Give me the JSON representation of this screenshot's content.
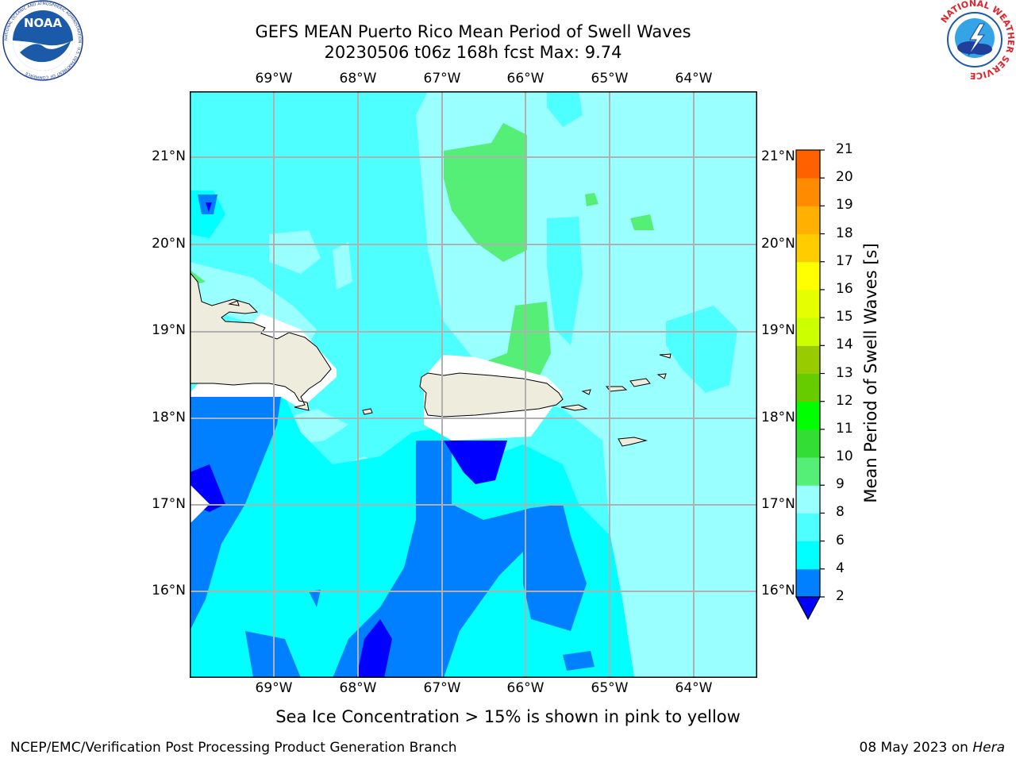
{
  "title": {
    "line1": "GEFS MEAN Puerto Rico Mean Period of Swell Waves",
    "line2": "20230506 t06z 168h fcst   Max: 9.74"
  },
  "map": {
    "lon_labels": [
      "69°W",
      "68°W",
      "67°W",
      "66°W",
      "65°W",
      "64°W"
    ],
    "lat_labels": [
      "21°N",
      "20°N",
      "19°N",
      "18°N",
      "17°N",
      "16°N"
    ],
    "lon_range": [
      -70,
      -63.4
    ],
    "lat_range": [
      15.0,
      21.7
    ]
  },
  "colorbar": {
    "title": "Mean Period of Swell Waves [s]",
    "ticks": [
      "2",
      "4",
      "6",
      "8",
      "9",
      "10",
      "11",
      "12",
      "13",
      "14",
      "15",
      "16",
      "17",
      "18",
      "19",
      "20",
      "21"
    ],
    "colors": [
      "#0000ff",
      "#0080ff",
      "#00ffff",
      "#4dffff",
      "#99ffff",
      "#55ee77",
      "#33dd33",
      "#00ff00",
      "#66cc00",
      "#99cc00",
      "#ccff00",
      "#e6ff00",
      "#ffff00",
      "#ffcc00",
      "#ffb000",
      "#ff8c00",
      "#ff6000",
      "#ff3300",
      "#ff0000"
    ]
  },
  "note": "Sea Ice Concentration > 15% is shown in pink to yellow",
  "footer": {
    "left": "NCEP/EMC/Verification Post Processing Product Generation Branch",
    "date": "08 May 2023 on",
    "host": "Hera"
  },
  "logos": {
    "left": "NOAA",
    "left_ring": "NATIONAL OCEANIC AND ATMOSPHERIC ADMINISTRATION · U.S. DEPARTMENT OF COMMERCE",
    "right_ring": "NATIONAL WEATHER SERVICE"
  },
  "colors": {
    "land": "#eeecdc",
    "grid": "#b0b0b0",
    "c2": "#0000ff",
    "c4": "#0080ff",
    "c6": "#00ffff",
    "c8": "#4dffff",
    "c9": "#99ffff",
    "c10": "#55ee77"
  }
}
